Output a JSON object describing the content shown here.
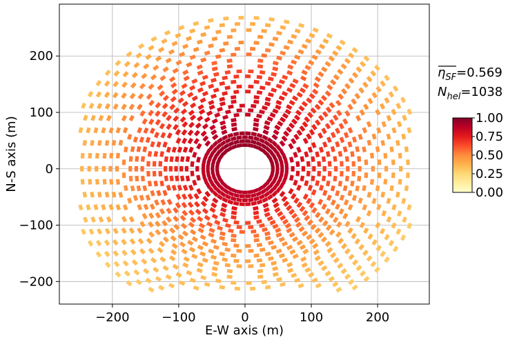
{
  "chart_data": {
    "type": "scatter",
    "title": "",
    "xlabel": "E-W axis (m)",
    "ylabel": "N-S axis (m)",
    "xlim": [
      -280,
      278
    ],
    "ylim": [
      -240,
      292
    ],
    "xticks": [
      -200,
      -100,
      0,
      100,
      200
    ],
    "yticks": [
      -200,
      -100,
      0,
      100,
      200
    ],
    "xtick_labels": [
      "−200",
      "−100",
      "0",
      "100",
      "200"
    ],
    "ytick_labels": [
      "−200",
      "−100",
      "0",
      "100",
      "200"
    ],
    "grid": true,
    "field": {
      "description_of_marks": "heliostat positions in a radially staggered circular field, colored by optical efficiency",
      "rings": [
        {
          "radius": 42,
          "count": 32,
          "eff_north": 0.95,
          "eff_south": 0.88
        },
        {
          "radius": 49,
          "count": 36,
          "eff_north": 0.95,
          "eff_south": 0.86
        },
        {
          "radius": 56,
          "count": 40,
          "eff_north": 0.93,
          "eff_south": 0.84
        },
        {
          "radius": 63,
          "count": 44,
          "eff_north": 0.92,
          "eff_south": 0.8
        },
        {
          "radius": 72,
          "count": 28,
          "eff_north": 0.9,
          "eff_south": 0.76
        },
        {
          "radius": 80,
          "count": 30,
          "eff_north": 0.88,
          "eff_south": 0.72
        },
        {
          "radius": 88,
          "count": 32,
          "eff_north": 0.86,
          "eff_south": 0.68
        },
        {
          "radius": 96,
          "count": 35,
          "eff_north": 0.84,
          "eff_south": 0.65
        },
        {
          "radius": 104,
          "count": 38,
          "eff_north": 0.82,
          "eff_south": 0.62
        },
        {
          "radius": 112,
          "count": 41,
          "eff_north": 0.8,
          "eff_south": 0.58
        },
        {
          "radius": 120,
          "count": 44,
          "eff_north": 0.78,
          "eff_south": 0.55
        },
        {
          "radius": 128,
          "count": 46,
          "eff_north": 0.76,
          "eff_south": 0.52
        },
        {
          "radius": 137,
          "count": 49,
          "eff_north": 0.73,
          "eff_south": 0.49
        },
        {
          "radius": 146,
          "count": 52,
          "eff_north": 0.71,
          "eff_south": 0.46
        },
        {
          "radius": 155,
          "count": 56,
          "eff_north": 0.69,
          "eff_south": 0.44
        },
        {
          "radius": 164,
          "count": 59,
          "eff_north": 0.67,
          "eff_south": 0.42
        },
        {
          "radius": 173,
          "count": 62,
          "eff_north": 0.64,
          "eff_south": 0.4
        },
        {
          "radius": 183,
          "count": 50,
          "eff_north": 0.61,
          "eff_south": 0.38
        },
        {
          "radius": 193,
          "count": 52,
          "eff_north": 0.58,
          "eff_south": 0.36
        },
        {
          "radius": 203,
          "count": 55,
          "eff_north": 0.55,
          "eff_south": 0.34
        },
        {
          "radius": 213,
          "count": 58,
          "eff_north": 0.52,
          "eff_south": 0.33
        },
        {
          "radius": 224,
          "count": 61,
          "eff_north": 0.49,
          "eff_south": 0.32
        },
        {
          "radius": 235,
          "count": 64,
          "eff_north": 0.46,
          "eff_south": 0.31
        },
        {
          "radius": 246,
          "count": 67,
          "eff_north": 0.42,
          "eff_south": 0.3
        },
        {
          "radius": 257,
          "count": 70,
          "eff_north": 0.38,
          "eff_south": 0.29
        },
        {
          "radius": 268,
          "count": 73,
          "eff_north": 0.34,
          "eff_south": 0.28
        }
      ],
      "max_x": 252,
      "min_y": -215,
      "gap_sectors_deg": [
        -90,
        -25,
        25,
        90,
        155,
        205
      ]
    },
    "colorbar": {
      "colormap": "YlOrRd",
      "range": [
        0,
        1
      ],
      "ticks": [
        0,
        0.25,
        0.5,
        0.75,
        1.0
      ],
      "tick_labels": [
        "0.00",
        "0.25",
        "0.50",
        "0.75",
        "1.00"
      ],
      "stops": [
        "#ffffcc",
        "#ffeda0",
        "#fed976",
        "#feb24c",
        "#fd8d3c",
        "#fc4e2a",
        "#e31a1c",
        "#bd0026",
        "#800026"
      ]
    },
    "annotations": {
      "eta_symbol": "η",
      "eta_subscript": "SF",
      "eta_value": "=0.569",
      "n_symbol": "N",
      "n_subscript": "hel",
      "n_value": "=1038"
    }
  }
}
